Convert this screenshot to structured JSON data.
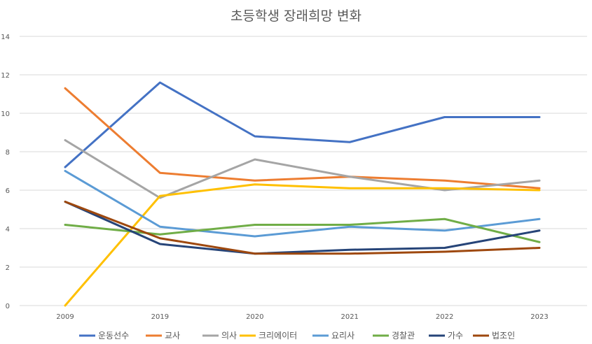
{
  "chart_data": {
    "type": "line",
    "title": "초등학생 장래희망 변화",
    "xlabel": "",
    "ylabel": "",
    "categories": [
      "2009",
      "2019",
      "2020",
      "2021",
      "2022",
      "2023"
    ],
    "ylim": [
      0,
      14
    ],
    "yticks": [
      0,
      2,
      4,
      6,
      8,
      10,
      12,
      14
    ],
    "grid": true,
    "legend_position": "bottom",
    "series": [
      {
        "name": "운동선수",
        "color": "#4472C4",
        "values": [
          7.2,
          11.6,
          8.8,
          8.5,
          9.8,
          9.8
        ]
      },
      {
        "name": "교사",
        "color": "#ED7D31",
        "values": [
          11.3,
          6.9,
          6.5,
          6.7,
          6.5,
          6.1
        ]
      },
      {
        "name": "의사",
        "color": "#A5A5A5",
        "values": [
          8.6,
          5.6,
          7.6,
          6.7,
          6.0,
          6.5
        ]
      },
      {
        "name": "크리에이터",
        "color": "#FFC000",
        "values": [
          0,
          5.7,
          6.3,
          6.1,
          6.1,
          6.0
        ]
      },
      {
        "name": "요리사",
        "color": "#5B9BD5",
        "values": [
          7.0,
          4.1,
          3.6,
          4.1,
          3.9,
          4.5
        ]
      },
      {
        "name": "경찰관",
        "color": "#70AD47",
        "values": [
          4.2,
          3.7,
          4.2,
          4.2,
          4.5,
          3.3
        ]
      },
      {
        "name": "가수",
        "color": "#264478",
        "values": [
          5.4,
          3.2,
          2.7,
          2.9,
          3.0,
          3.9
        ]
      },
      {
        "name": "법조인",
        "color": "#9E480E",
        "values": [
          5.4,
          3.5,
          2.7,
          2.7,
          2.8,
          3.0
        ]
      }
    ]
  }
}
